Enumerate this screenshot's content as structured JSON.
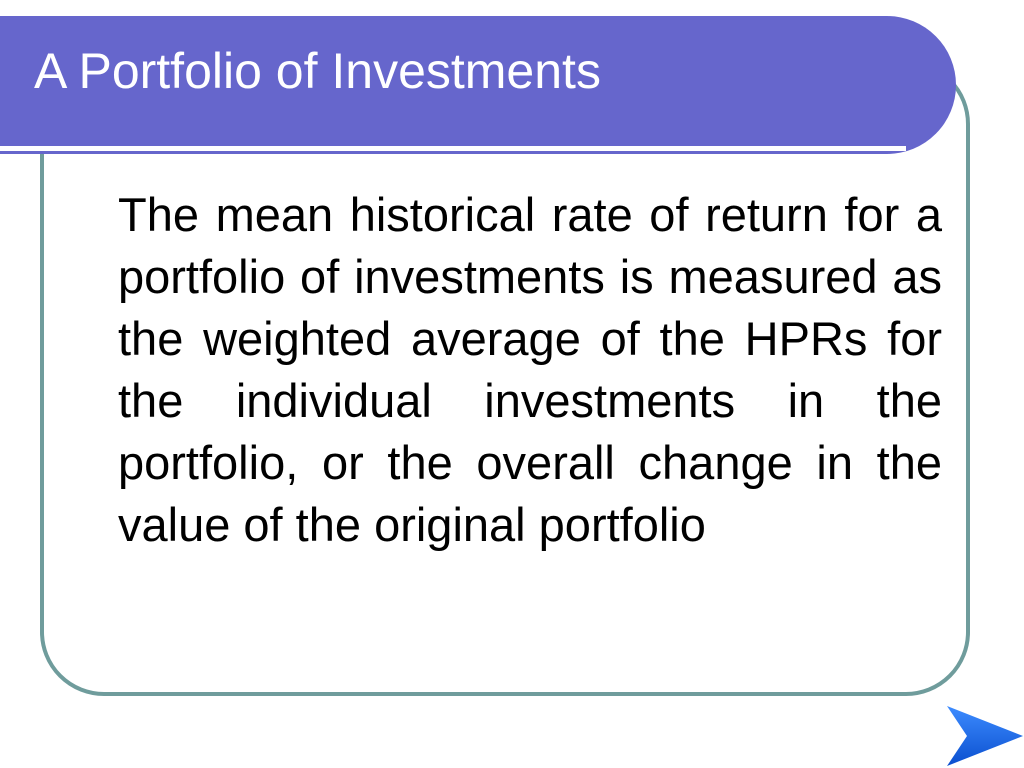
{
  "slide": {
    "title": "A Portfolio of Investments",
    "body": "The mean historical rate of return for a portfolio of investments is measured as the weighted average of the HPRs for the individual investments in the portfolio, or the overall change in the value of the original portfolio"
  },
  "navigation": {
    "next_icon": "next-slide-arrow-icon"
  },
  "colors": {
    "title_bar": "#6666cc",
    "frame_border": "#6f9c9c",
    "arrow": "#1f6fe0"
  }
}
